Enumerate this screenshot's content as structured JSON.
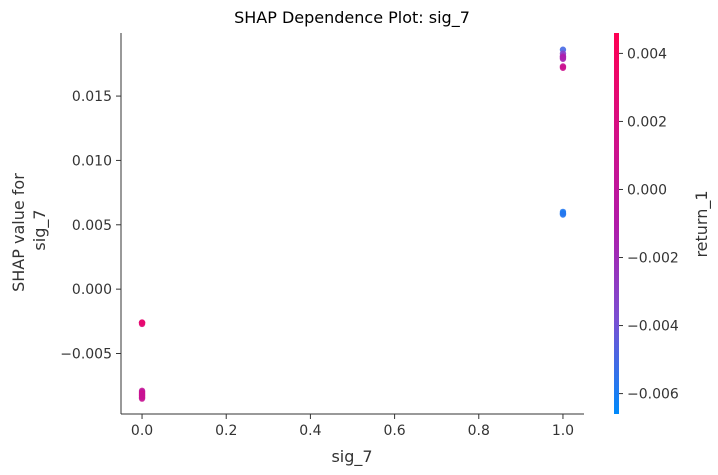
{
  "chart_data": {
    "type": "scatter",
    "title": "SHAP Dependence Plot: sig_7",
    "xlabel": "sig_7",
    "ylabel_lines": [
      "SHAP value for",
      "sig_7"
    ],
    "colorbar_label": "return_1",
    "xlim": [
      -0.05,
      1.05
    ],
    "ylim": [
      -0.0097,
      0.0199
    ],
    "x_ticks": [
      0.0,
      0.2,
      0.4,
      0.6,
      0.8,
      1.0
    ],
    "x_tick_labels": [
      "0.0",
      "0.2",
      "0.4",
      "0.6",
      "0.8",
      "1.0"
    ],
    "y_ticks": [
      -0.005,
      0.0,
      0.005,
      0.01,
      0.015
    ],
    "y_tick_labels": [
      "−0.005",
      "0.000",
      "0.005",
      "0.010",
      "0.015"
    ],
    "colorbar_range": [
      -0.0066,
      0.0046
    ],
    "colorbar_ticks": [
      -0.006,
      -0.004,
      -0.002,
      0.0,
      0.002,
      0.004
    ],
    "colorbar_tick_labels": [
      "−0.006",
      "−0.004",
      "−0.002",
      "0.000",
      "0.002",
      "0.004"
    ],
    "colormap": [
      "#008afb",
      "#7a4fd2",
      "#b21aa8",
      "#d60f84",
      "#ff0052"
    ],
    "grid": false,
    "points": [
      {
        "x": 0.0,
        "y": -0.0026,
        "c": 0.0025
      },
      {
        "x": 0.0,
        "y": -0.0027,
        "c": 0.0023
      },
      {
        "x": 0.0,
        "y": -0.0026,
        "c": 0.003
      },
      {
        "x": 0.0,
        "y": -0.0079,
        "c": 0.0004
      },
      {
        "x": 0.0,
        "y": -0.008,
        "c": 0.0
      },
      {
        "x": 0.0,
        "y": -0.0081,
        "c": 0.0012
      },
      {
        "x": 0.0,
        "y": -0.0082,
        "c": 0.0008
      },
      {
        "x": 0.0,
        "y": -0.0083,
        "c": 0.0003
      },
      {
        "x": 0.0,
        "y": -0.0084,
        "c": 0.001
      },
      {
        "x": 0.0,
        "y": -0.0085,
        "c": 0.0006
      },
      {
        "x": 1.0,
        "y": 0.0186,
        "c": -0.005
      },
      {
        "x": 1.0,
        "y": 0.0183,
        "c": -0.003
      },
      {
        "x": 1.0,
        "y": 0.0181,
        "c": -0.002
      },
      {
        "x": 1.0,
        "y": 0.018,
        "c": -0.001
      },
      {
        "x": 1.0,
        "y": 0.0179,
        "c": -0.0015
      },
      {
        "x": 1.0,
        "y": 0.0173,
        "c": 0.0005
      },
      {
        "x": 1.0,
        "y": 0.0172,
        "c": 0.001
      },
      {
        "x": 1.0,
        "y": 0.006,
        "c": -0.0058
      },
      {
        "x": 1.0,
        "y": 0.0059,
        "c": -0.006
      },
      {
        "x": 1.0,
        "y": 0.0058,
        "c": -0.0057
      }
    ]
  }
}
